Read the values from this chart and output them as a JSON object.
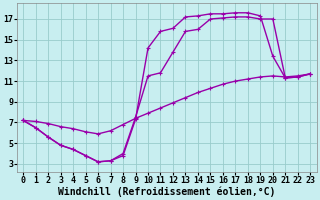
{
  "background_color": "#c8eef0",
  "line_color": "#9900aa",
  "grid_color": "#99cccc",
  "xlabel": "Windchill (Refroidissement éolien,°C)",
  "xlim_min": -0.5,
  "xlim_max": 23.5,
  "ylim_min": 2.2,
  "ylim_max": 18.5,
  "xticks": [
    0,
    1,
    2,
    3,
    4,
    5,
    6,
    7,
    8,
    9,
    10,
    11,
    12,
    13,
    14,
    15,
    16,
    17,
    18,
    19,
    20,
    21,
    22,
    23
  ],
  "yticks": [
    3,
    5,
    7,
    9,
    11,
    13,
    15,
    17
  ],
  "line1_x": [
    0,
    1,
    2,
    3,
    4,
    5,
    6,
    7,
    8,
    9,
    10,
    11,
    12,
    13,
    14,
    15,
    16,
    17,
    18,
    19,
    20,
    21,
    22,
    23
  ],
  "line1_y": [
    7.2,
    6.5,
    5.6,
    4.8,
    4.4,
    3.8,
    3.2,
    3.3,
    3.8,
    7.3,
    14.2,
    15.8,
    16.1,
    17.2,
    17.3,
    17.5,
    17.5,
    17.6,
    17.6,
    17.3,
    13.4,
    11.3,
    11.4,
    11.7
  ],
  "line2_x": [
    0,
    1,
    2,
    3,
    4,
    5,
    6,
    7,
    8,
    9,
    10,
    11,
    12,
    13,
    14,
    15,
    16,
    17,
    18,
    19,
    20,
    21,
    22,
    23
  ],
  "line2_y": [
    7.2,
    6.5,
    5.6,
    4.8,
    4.4,
    3.8,
    3.2,
    3.3,
    4.0,
    7.5,
    11.5,
    11.8,
    13.8,
    15.8,
    16.0,
    17.0,
    17.1,
    17.2,
    17.2,
    17.0,
    17.0,
    11.3,
    11.4,
    11.7
  ],
  "line3_x": [
    0,
    1,
    2,
    3,
    4,
    5,
    6,
    7,
    8,
    9,
    10,
    11,
    12,
    13,
    14,
    15,
    16,
    17,
    18,
    19,
    20,
    21,
    22,
    23
  ],
  "line3_y": [
    7.2,
    7.1,
    6.9,
    6.6,
    6.4,
    6.1,
    5.9,
    6.2,
    6.8,
    7.4,
    7.9,
    8.4,
    8.9,
    9.4,
    9.9,
    10.3,
    10.7,
    11.0,
    11.2,
    11.4,
    11.5,
    11.4,
    11.5,
    11.7
  ],
  "tick_fontsize": 6.0,
  "xlabel_fontsize": 7.0,
  "lw": 1.0,
  "ms": 2.5
}
